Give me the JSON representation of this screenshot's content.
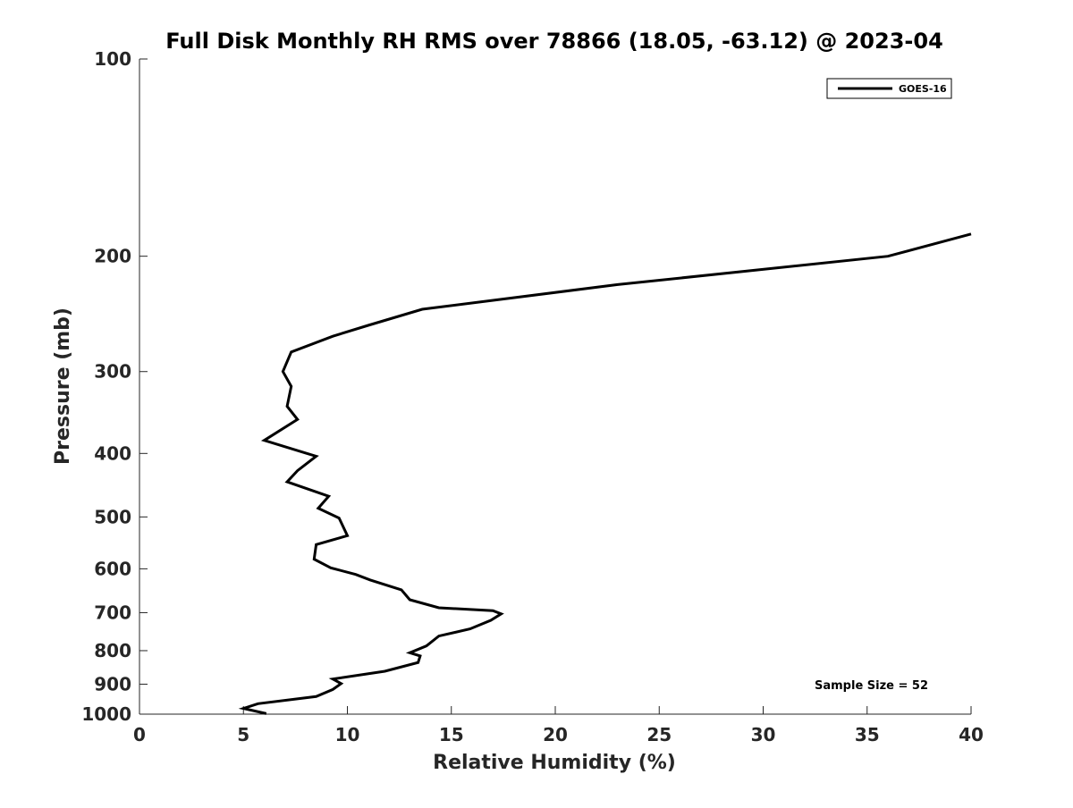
{
  "chart_data": {
    "type": "line",
    "title": "Full Disk Monthly RH RMS over 78866 (18.05, -63.12) @ 2023-04",
    "xlabel": "Relative Humidity (%)",
    "ylabel": "Pressure (mb)",
    "xlim": [
      0,
      40
    ],
    "ylim": [
      100,
      1000
    ],
    "yscale": "log",
    "y_reversed": true,
    "grid": false,
    "legend_position": "top-right",
    "x_ticks": [
      0,
      5,
      10,
      15,
      20,
      25,
      30,
      35,
      40
    ],
    "y_ticks": [
      100,
      200,
      300,
      400,
      500,
      600,
      700,
      800,
      900,
      1000
    ],
    "series": [
      {
        "name": "GOES-16",
        "color": "#000000",
        "x": [
          40.0,
          36.0,
          23.0,
          13.6,
          11.0,
          9.3,
          7.3,
          6.9,
          7.3,
          7.1,
          7.6,
          6.0,
          8.5,
          7.6,
          7.1,
          9.1,
          8.6,
          9.6,
          10.0,
          8.5,
          8.4,
          9.2,
          10.4,
          11.1,
          12.6,
          13.0,
          14.4,
          17.0,
          17.4,
          16.9,
          15.9,
          14.4,
          13.8,
          13.0,
          13.5,
          13.4,
          11.8,
          9.3,
          9.7,
          9.3,
          8.5,
          5.7,
          5.0,
          6.1
        ],
        "y": [
          185,
          200,
          221,
          241,
          255,
          265,
          280,
          300,
          316,
          339,
          355,
          382,
          404,
          425,
          442,
          465,
          485,
          502,
          534,
          551,
          580,
          598,
          612,
          624,
          646,
          669,
          688,
          695,
          703,
          719,
          741,
          760,
          787,
          806,
          815,
          834,
          860,
          884,
          898,
          917,
          940,
          964,
          980,
          998
        ]
      }
    ],
    "annotation": "Sample Size = 52"
  }
}
